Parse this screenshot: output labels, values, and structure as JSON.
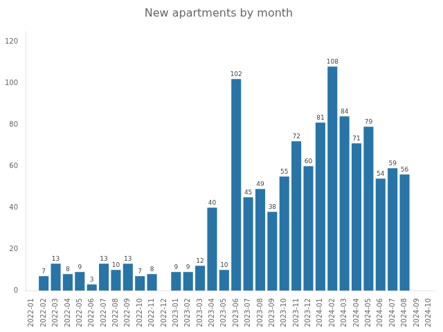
{
  "chart_data": {
    "type": "bar",
    "title": "New apartments by month",
    "categories": [
      "2022-01",
      "2022-02",
      "2022-03",
      "2022-04",
      "2022-05",
      "2022-06",
      "2022-07",
      "2022-08",
      "2022-09",
      "2022-10",
      "2022-11",
      "2022-12",
      "2023-01",
      "2023-02",
      "2023-03",
      "2023-04",
      "2023-05",
      "2023-06",
      "2023-07",
      "2023-08",
      "2023-09",
      "2023-10",
      "2023-11",
      "2023-12",
      "2024-01",
      "2024-02",
      "2024-03",
      "2024-04",
      "2024-05",
      "2024-06",
      "2024-07",
      "2024-08",
      "2024-09",
      "2024-10"
    ],
    "values": [
      0,
      7,
      13,
      8,
      9,
      3,
      13,
      10,
      13,
      7,
      8,
      0,
      9,
      9,
      12,
      40,
      10,
      102,
      45,
      49,
      38,
      55,
      72,
      60,
      81,
      108,
      84,
      71,
      79,
      54,
      59,
      56,
      0,
      0
    ],
    "value_labels": [
      null,
      "7",
      "13",
      "8",
      "9",
      "3",
      "13",
      "10",
      "13",
      "7",
      "8",
      null,
      "9",
      "9",
      "12",
      "40",
      "10",
      "102",
      "45",
      "49",
      "38",
      "55",
      "72",
      "60",
      "81",
      "108",
      "84",
      "71",
      "79",
      "54",
      "59",
      "56",
      null,
      null
    ],
    "data_labels": true,
    "color": "#2874a6",
    "ylim": [
      0,
      125
    ],
    "yticks": [
      0,
      20,
      40,
      60,
      80,
      100,
      120
    ],
    "grid": false
  }
}
